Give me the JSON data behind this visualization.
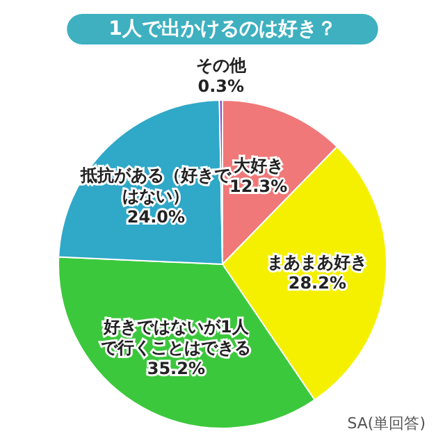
{
  "chart_data": {
    "type": "pie",
    "title": "1人で出かけるのは好き？",
    "categories": [
      "大好き",
      "まあまあ好き",
      "好きではないが1人で行くことはできる",
      "抵抗がある（好きではない）",
      "その他"
    ],
    "values": [
      12.3,
      28.2,
      35.2,
      24.0,
      0.3
    ],
    "value_labels": [
      "12.3%",
      "28.2%",
      "35.2%",
      "24.0%",
      "0.3%"
    ],
    "colors": [
      "#f07878",
      "#f5f000",
      "#3cc83c",
      "#30a8c8",
      "#9a40c0"
    ],
    "annotations": [
      "SA(単回答)"
    ],
    "legend": false
  }
}
